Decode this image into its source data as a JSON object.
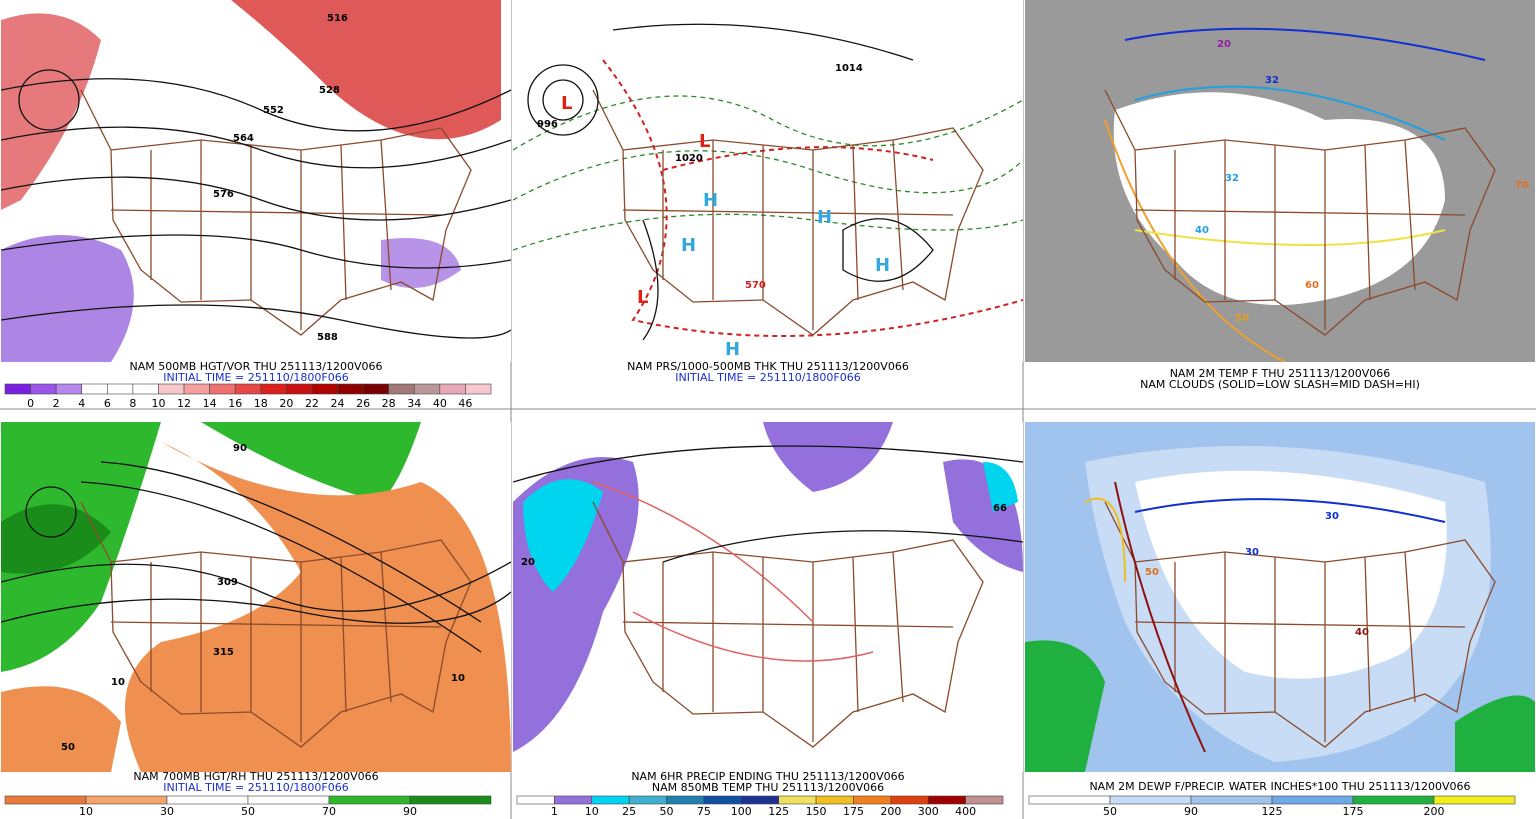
{
  "panels": [
    {
      "caption": [
        "NAM 500MB HGT/VOR THU 251113/1200V066",
        "INITIAL TIME = 251110/1800F066"
      ],
      "map_labels": [
        "552",
        "564",
        "576",
        "528",
        "588",
        "516"
      ],
      "colorbar": {
        "labels": [
          0,
          2,
          4,
          6,
          8,
          10,
          12,
          14,
          16,
          18,
          20,
          22,
          24,
          26,
          28,
          34,
          40,
          46
        ],
        "colors": [
          "#7a1fe0",
          "#9955e8",
          "#b488ee",
          "#ffffff",
          "#ffffff",
          "#ffffff",
          "#f8c8c8",
          "#f5a0a0",
          "#ee7070",
          "#e84848",
          "#dc2020",
          "#c81010",
          "#b00000",
          "#900000",
          "#780000",
          "#a07878",
          "#b89898",
          "#e8a8b8",
          "#f8c8d0"
        ]
      }
    },
    {
      "caption": [
        "NAM PRS/1000-500MB THK THU 251113/1200V066",
        "INITIAL TIME = 251110/1800F066"
      ],
      "map_labels": [
        "L",
        "L",
        "L",
        "H",
        "H",
        "H",
        "H",
        "H",
        "996",
        "1020",
        "570",
        "1014"
      ]
    },
    {
      "caption": [
        "NAM 2M TEMP F THU 251113/1200V066",
        "NAM CLOUDS (SOLID=LOW SLASH=MID DASH=HI)"
      ],
      "map_labels": [
        "32",
        "32",
        "40",
        "50",
        "60",
        "70",
        "20"
      ]
    },
    {
      "caption": [
        "NAM 700MB HGT/RH THU 251113/1200V066",
        "INITIAL TIME = 251110/1800F066"
      ],
      "map_labels": [
        "10",
        "50",
        "309",
        "315",
        "90",
        "10"
      ],
      "colorbar": {
        "labels": [
          10,
          30,
          50,
          70,
          90
        ],
        "colors": [
          "#e8783c",
          "#f4a46b",
          "#ffffff",
          "#ffffff",
          "#2eb82e",
          "#1a8c1a"
        ]
      }
    },
    {
      "caption": [
        "NAM 6HR PRECIP ENDING THU 251113/1200V066",
        "NAM 850MB TEMP THU 251113/1200V066"
      ],
      "map_labels": [
        "20",
        "66"
      ],
      "colorbar": {
        "labels": [
          1,
          10,
          25,
          50,
          75,
          100,
          125,
          150,
          175,
          200,
          300,
          400
        ],
        "colors": [
          "#ffffff",
          "#9370db",
          "#00d5f0",
          "#40b0d0",
          "#2080b0",
          "#1050a0",
          "#203090",
          "#f0e060",
          "#f0c020",
          "#f08020",
          "#e04010",
          "#a00000",
          "#c09090"
        ]
      }
    },
    {
      "caption": [
        "NAM 2M DEWP F/PRECIP. WATER INCHES*100 THU 251113/1200V066"
      ],
      "map_labels": [
        "30",
        "30",
        "50",
        "40"
      ],
      "colorbar": {
        "labels": [
          50,
          90,
          125,
          175,
          200
        ],
        "colors": [
          "#ffffff",
          "#c8dcf5",
          "#a0c4ee",
          "#6fa8e8",
          "#20b040",
          "#f0f020"
        ]
      }
    }
  ]
}
